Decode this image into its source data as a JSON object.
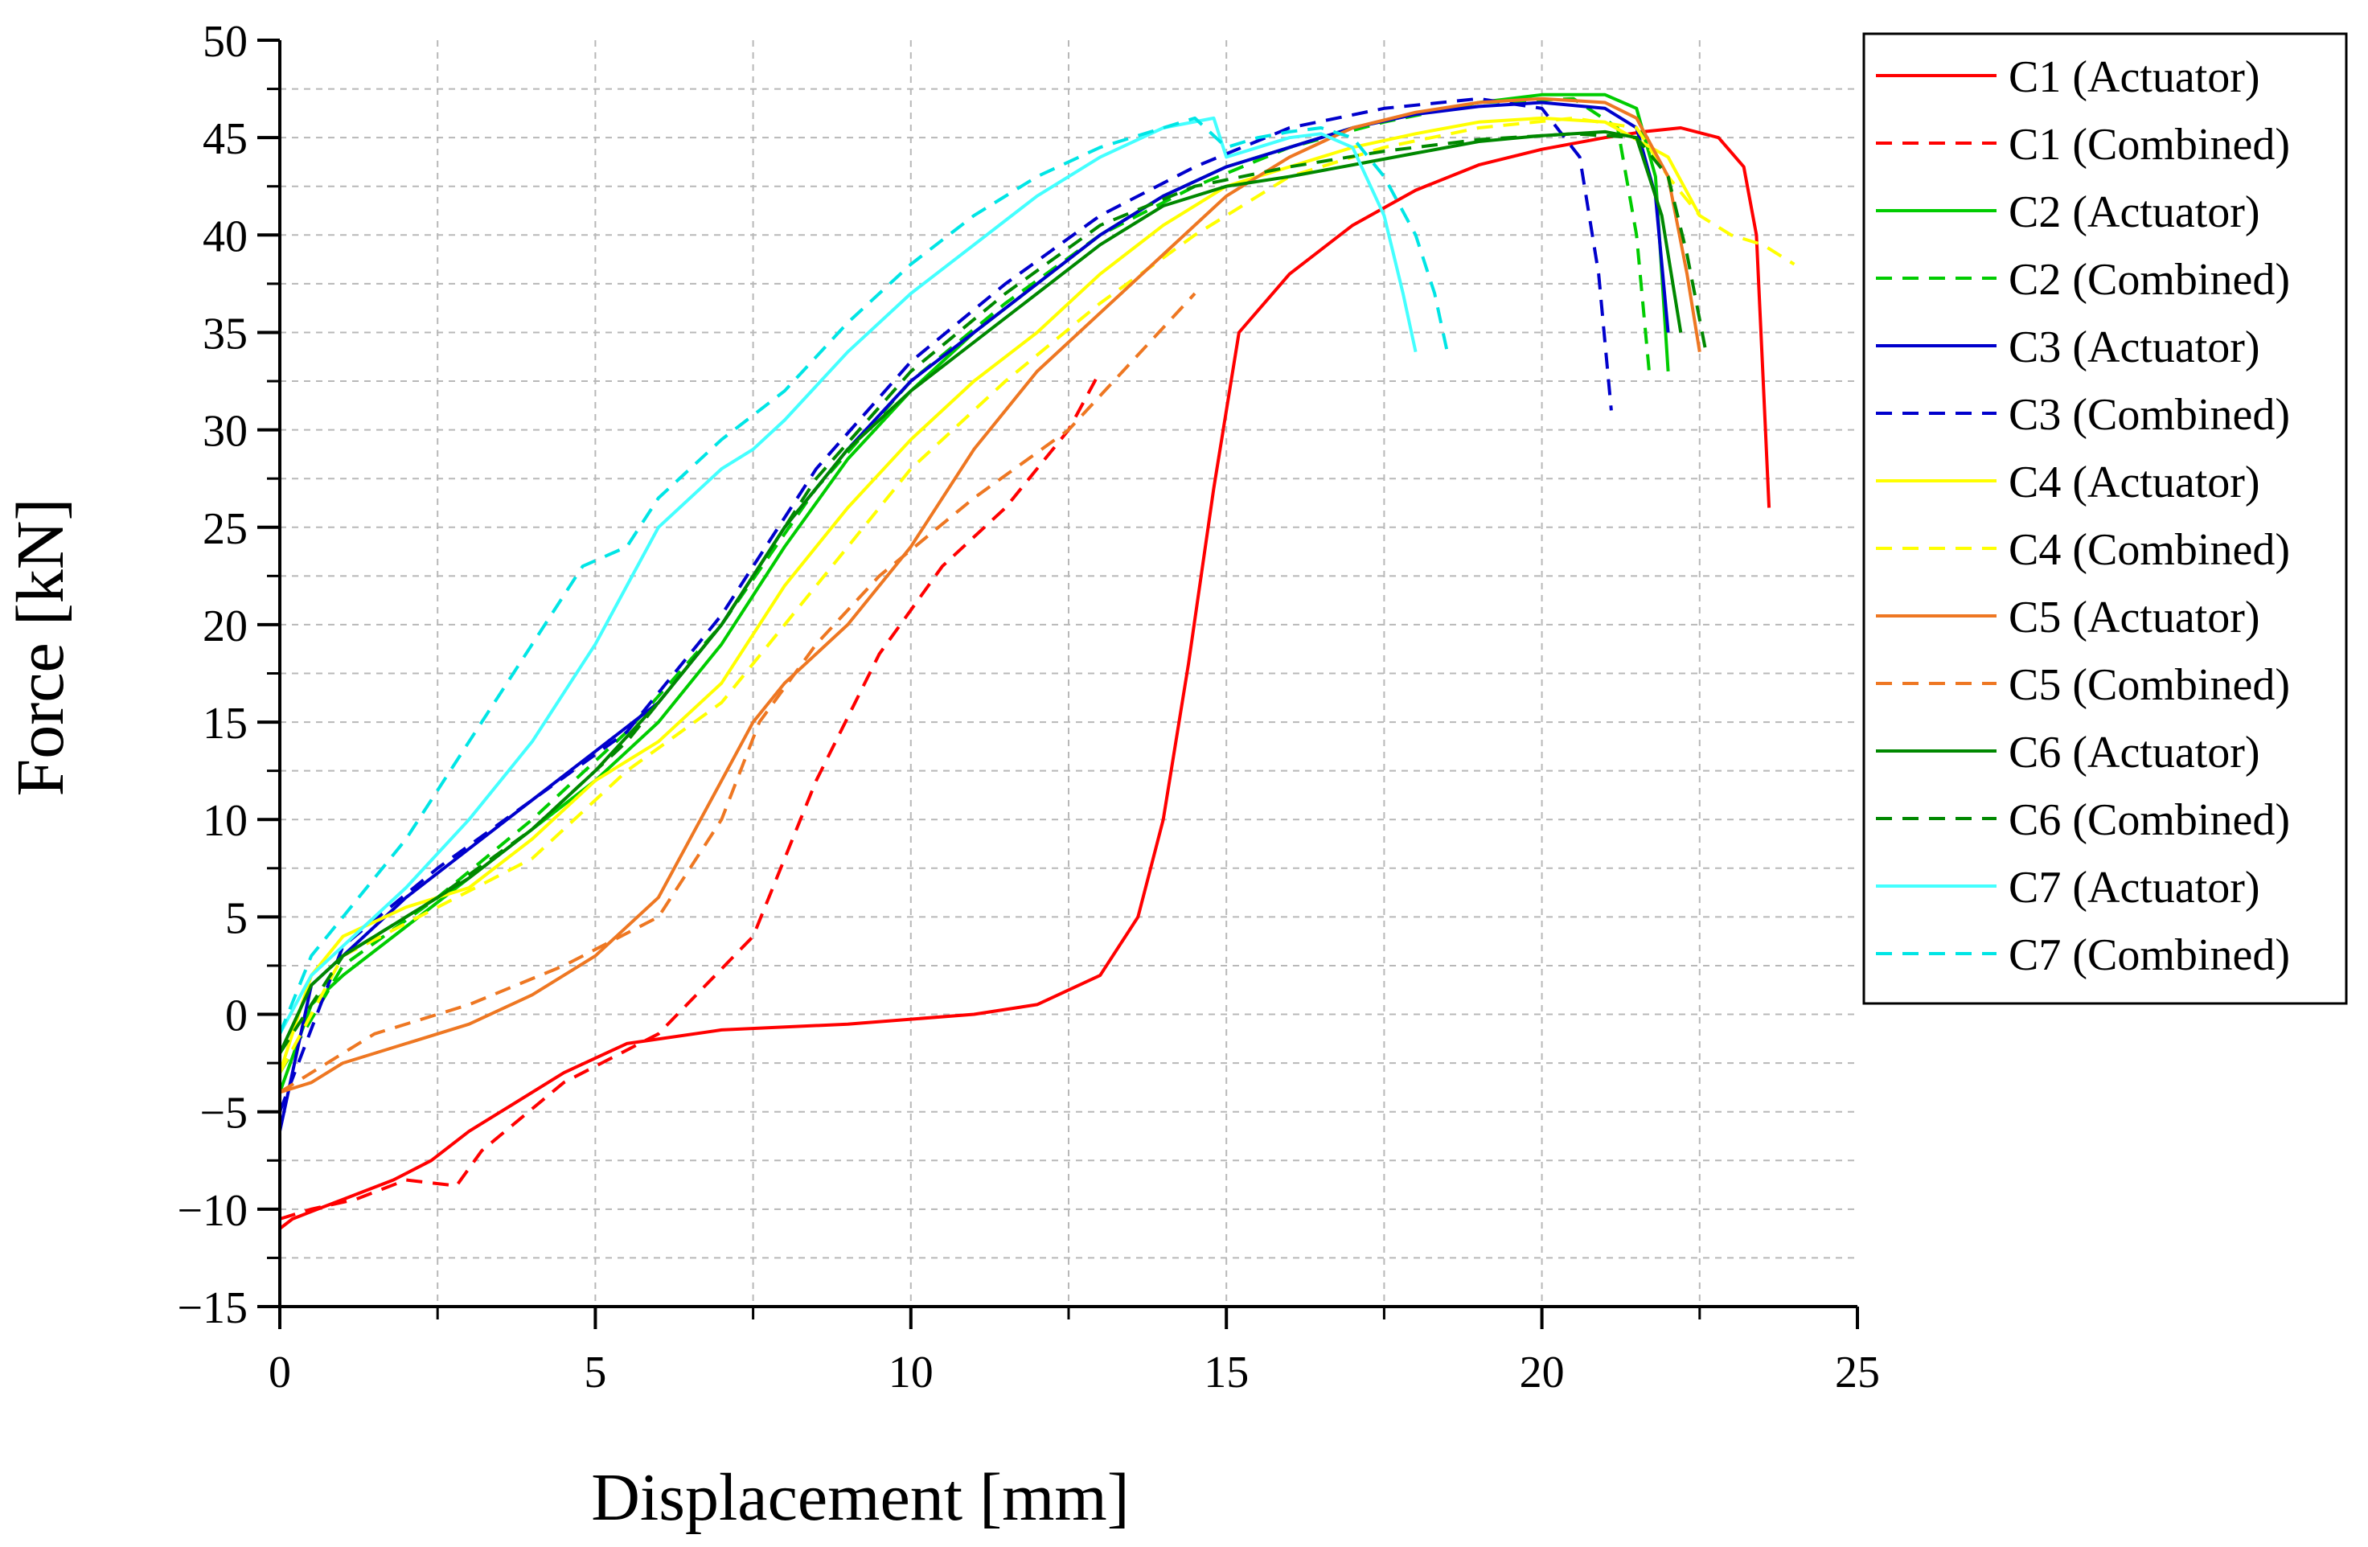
{
  "chart_data": {
    "type": "line",
    "title": "",
    "xlabel": "Displacement [mm]",
    "ylabel": "Force [kN]",
    "xlim": [
      0,
      25
    ],
    "ylim": [
      -15,
      50
    ],
    "xticks": [
      0,
      5,
      10,
      15,
      20,
      25
    ],
    "yticks": [
      -15,
      -10,
      -5,
      0,
      5,
      10,
      15,
      20,
      25,
      30,
      35,
      40,
      45,
      50
    ],
    "xtick_labels": [
      "0",
      "5",
      "10",
      "15",
      "20",
      "25"
    ],
    "ytick_labels": [
      "−15",
      "−10",
      "−5",
      "0",
      "5",
      "10",
      "15",
      "20",
      "25",
      "30",
      "35",
      "40",
      "45",
      "50"
    ],
    "grid": true,
    "legend_position": "right",
    "series": [
      {
        "name": "C1 (Actuator)",
        "color": "#ff0000",
        "dash": false,
        "x": [
          0,
          0.2,
          0.6,
          1.0,
          1.8,
          2.4,
          3.0,
          3.5,
          4.5,
          5.5,
          7.0,
          9.0,
          11.0,
          12.0,
          13.0,
          13.6,
          14.0,
          14.4,
          14.8,
          15.2,
          16.0,
          17.0,
          18.0,
          19.0,
          20.0,
          21.0,
          21.6,
          22.2,
          22.8,
          23.2,
          23.4,
          23.5,
          23.6
        ],
        "y": [
          -11.0,
          -10.5,
          -10.0,
          -9.5,
          -8.5,
          -7.5,
          -6.0,
          -5.0,
          -3.0,
          -1.5,
          -0.8,
          -0.5,
          0.0,
          0.5,
          2.0,
          5.0,
          10.0,
          18.0,
          27.0,
          35.0,
          38.0,
          40.5,
          42.3,
          43.6,
          44.4,
          45.0,
          45.3,
          45.5,
          45.0,
          43.5,
          40.0,
          33.0,
          26.0
        ]
      },
      {
        "name": "C1 (Combined)",
        "color": "#ff0000",
        "dash": true,
        "x": [
          0,
          0.5,
          1.2,
          2.0,
          2.8,
          3.2,
          4.5,
          6.0,
          7.5,
          8.5,
          9.5,
          10.5,
          11.5,
          12.5,
          13.0
        ],
        "y": [
          -10.5,
          -10.0,
          -9.5,
          -8.5,
          -8.8,
          -7.0,
          -3.5,
          -1.0,
          4.0,
          12.0,
          18.5,
          23.0,
          26.0,
          30.0,
          33.0
        ]
      },
      {
        "name": "C2 (Actuator)",
        "color": "#00cc00",
        "dash": false,
        "x": [
          0,
          0.5,
          1.0,
          2.0,
          3.0,
          4.0,
          5.0,
          6.0,
          7.0,
          8.0,
          9.0,
          10.0,
          11.0,
          12.0,
          13.0,
          14.0,
          15.0,
          16.0,
          17.0,
          18.0,
          19.0,
          20.0,
          21.0,
          21.5,
          21.8,
          22.0
        ],
        "y": [
          -4.0,
          0.5,
          2.0,
          4.5,
          7.0,
          9.5,
          12.0,
          15.0,
          19.0,
          24.0,
          28.5,
          32.0,
          35.0,
          37.5,
          40.0,
          42.0,
          43.5,
          44.5,
          45.5,
          46.2,
          46.8,
          47.2,
          47.2,
          46.5,
          43.0,
          33.0
        ]
      },
      {
        "name": "C2 (Combined)",
        "color": "#00cc00",
        "dash": true,
        "x": [
          0,
          1.0,
          2.5,
          4.0,
          5.5,
          7.0,
          8.5,
          10.0,
          11.5,
          13.0,
          14.5,
          16.0,
          17.5,
          19.0,
          20.5,
          21.2,
          21.5,
          21.7
        ],
        "y": [
          -3.0,
          2.5,
          6.0,
          10.0,
          14.5,
          20.0,
          27.0,
          32.5,
          36.5,
          40.0,
          42.5,
          44.5,
          45.8,
          46.8,
          47.0,
          45.5,
          40.0,
          33.0
        ]
      },
      {
        "name": "C3 (Actuator)",
        "color": "#0000cc",
        "dash": false,
        "x": [
          0,
          0.5,
          1.0,
          2.0,
          3.0,
          4.0,
          5.0,
          6.0,
          7.0,
          8.0,
          9.0,
          10.0,
          11.0,
          12.0,
          13.0,
          14.0,
          15.0,
          16.0,
          17.0,
          18.0,
          19.0,
          20.0,
          21.0,
          21.5,
          21.8,
          22.0
        ],
        "y": [
          -6.0,
          1.5,
          3.0,
          6.0,
          8.5,
          11.0,
          13.5,
          16.0,
          20.0,
          25.0,
          29.0,
          32.5,
          35.0,
          37.5,
          40.0,
          42.0,
          43.5,
          44.5,
          45.5,
          46.2,
          46.6,
          46.8,
          46.5,
          45.5,
          42.0,
          35.0
        ]
      },
      {
        "name": "C3 (Combined)",
        "color": "#0000cc",
        "dash": true,
        "x": [
          0,
          1.0,
          2.5,
          4.0,
          5.5,
          7.0,
          8.5,
          10.0,
          11.5,
          13.0,
          14.5,
          16.0,
          17.5,
          19.0,
          20.0,
          20.6,
          20.9,
          21.1
        ],
        "y": [
          -5.0,
          3.5,
          7.5,
          11.0,
          14.5,
          20.5,
          28.0,
          33.5,
          37.5,
          41.0,
          43.5,
          45.5,
          46.5,
          47.0,
          46.5,
          44.0,
          38.0,
          31.0
        ]
      },
      {
        "name": "C4 (Actuator)",
        "color": "#ffff00",
        "dash": false,
        "x": [
          0,
          0.5,
          1.0,
          2.0,
          3.0,
          4.0,
          5.0,
          6.0,
          7.0,
          8.0,
          9.0,
          10.0,
          11.0,
          12.0,
          13.0,
          14.0,
          15.0,
          16.0,
          17.0,
          18.0,
          19.0,
          20.0,
          21.0,
          22.0,
          22.5
        ],
        "y": [
          -3.0,
          2.0,
          4.0,
          5.5,
          6.5,
          9.0,
          12.0,
          14.0,
          17.0,
          22.0,
          26.0,
          29.5,
          32.5,
          35.0,
          38.0,
          40.5,
          42.5,
          43.5,
          44.5,
          45.2,
          45.8,
          46.0,
          45.8,
          44.0,
          41.0
        ]
      },
      {
        "name": "C4 (Combined)",
        "color": "#ffff00",
        "dash": true,
        "x": [
          0,
          1.0,
          2.5,
          4.0,
          5.5,
          7.0,
          8.5,
          10.0,
          11.5,
          13.0,
          14.5,
          16.0,
          17.5,
          19.0,
          20.5,
          21.5,
          22.0,
          22.5,
          23.0,
          23.5,
          24.0
        ],
        "y": [
          -3.0,
          3.0,
          5.5,
          8.0,
          12.5,
          16.0,
          22.0,
          28.0,
          32.5,
          36.5,
          40.0,
          43.0,
          44.5,
          45.5,
          46.0,
          45.5,
          43.0,
          41.0,
          40.0,
          39.5,
          38.5
        ]
      },
      {
        "name": "C5 (Actuator)",
        "color": "#ee7722",
        "dash": false,
        "x": [
          0,
          0.5,
          1.0,
          2.0,
          3.0,
          4.0,
          5.0,
          6.0,
          7.0,
          7.5,
          8.0,
          9.0,
          10.0,
          11.0,
          12.0,
          13.0,
          14.0,
          15.0,
          16.0,
          17.0,
          18.0,
          19.0,
          20.0,
          21.0,
          21.5,
          22.0,
          22.3,
          22.5
        ],
        "y": [
          -4.0,
          -3.5,
          -2.5,
          -1.5,
          -0.5,
          1.0,
          3.0,
          6.0,
          12.0,
          15.0,
          17.0,
          20.0,
          24.0,
          29.0,
          33.0,
          36.0,
          39.0,
          42.0,
          44.0,
          45.5,
          46.3,
          46.8,
          47.0,
          46.8,
          46.0,
          43.0,
          38.0,
          34.0
        ]
      },
      {
        "name": "C5 (Combined)",
        "color": "#ee7722",
        "dash": true,
        "x": [
          0,
          0.5,
          1.5,
          3.0,
          4.5,
          6.0,
          7.0,
          7.6,
          8.5,
          9.5,
          11.0,
          12.5,
          13.5,
          14.5
        ],
        "y": [
          -4.0,
          -3.0,
          -1.0,
          0.5,
          2.5,
          5.0,
          10.0,
          15.0,
          19.0,
          22.5,
          26.5,
          30.0,
          33.5,
          37.0
        ]
      },
      {
        "name": "C6 (Actuator)",
        "color": "#008800",
        "dash": false,
        "x": [
          0,
          0.5,
          1.0,
          2.0,
          3.0,
          4.0,
          5.0,
          6.0,
          7.0,
          8.0,
          9.0,
          10.0,
          11.0,
          12.0,
          13.0,
          14.0,
          15.0,
          16.0,
          17.0,
          18.0,
          19.0,
          20.0,
          21.0,
          21.5,
          21.9,
          22.2
        ],
        "y": [
          -2.0,
          1.5,
          3.0,
          5.0,
          7.0,
          9.5,
          12.5,
          16.0,
          20.0,
          25.0,
          29.0,
          32.0,
          34.5,
          37.0,
          39.5,
          41.5,
          42.5,
          43.0,
          43.6,
          44.2,
          44.8,
          45.1,
          45.3,
          45.0,
          41.0,
          35.0
        ]
      },
      {
        "name": "C6 (Combined)",
        "color": "#008800",
        "dash": true,
        "x": [
          0,
          1.0,
          2.5,
          4.0,
          5.5,
          7.0,
          8.5,
          10.0,
          11.5,
          13.0,
          14.5,
          16.0,
          17.5,
          19.0,
          20.5,
          21.5,
          22.0,
          22.3,
          22.6
        ],
        "y": [
          -2.0,
          3.0,
          6.0,
          9.5,
          14.0,
          20.0,
          27.5,
          33.0,
          37.0,
          40.5,
          42.5,
          43.5,
          44.3,
          44.9,
          45.2,
          45.0,
          43.0,
          39.0,
          34.0
        ]
      },
      {
        "name": "C7 (Actuator)",
        "color": "#44ffff",
        "dash": false,
        "x": [
          0,
          0.5,
          1.0,
          2.0,
          3.0,
          4.0,
          5.0,
          5.5,
          6.0,
          7.0,
          7.5,
          8.0,
          9.0,
          10.0,
          11.0,
          12.0,
          13.0,
          14.0,
          14.8,
          15.0,
          15.5,
          16.0,
          16.5,
          17.0,
          17.5,
          17.8,
          18.0
        ],
        "y": [
          -1.0,
          2.0,
          3.5,
          6.5,
          10.0,
          14.0,
          19.0,
          22.0,
          25.0,
          28.0,
          29.0,
          30.5,
          34.0,
          37.0,
          39.5,
          42.0,
          44.0,
          45.5,
          46.0,
          44.0,
          44.5,
          45.0,
          45.2,
          44.5,
          41.0,
          37.0,
          34.0
        ]
      },
      {
        "name": "C7 (Combined)",
        "color": "#00e5e5",
        "dash": true,
        "x": [
          0,
          0.5,
          1.0,
          2.0,
          3.0,
          4.0,
          4.8,
          5.5,
          6.0,
          7.0,
          8.0,
          9.0,
          10.0,
          11.0,
          12.0,
          13.0,
          14.0,
          14.5,
          15.0,
          15.5,
          16.0,
          16.5,
          17.0,
          17.5,
          18.0,
          18.3,
          18.5
        ],
        "y": [
          -1.0,
          3.0,
          5.0,
          9.0,
          14.0,
          19.0,
          23.0,
          24.0,
          26.5,
          29.5,
          32.0,
          35.5,
          38.5,
          41.0,
          43.0,
          44.5,
          45.5,
          46.0,
          44.5,
          45.0,
          45.3,
          45.5,
          45.0,
          43.0,
          40.0,
          37.0,
          34.0
        ]
      }
    ]
  }
}
